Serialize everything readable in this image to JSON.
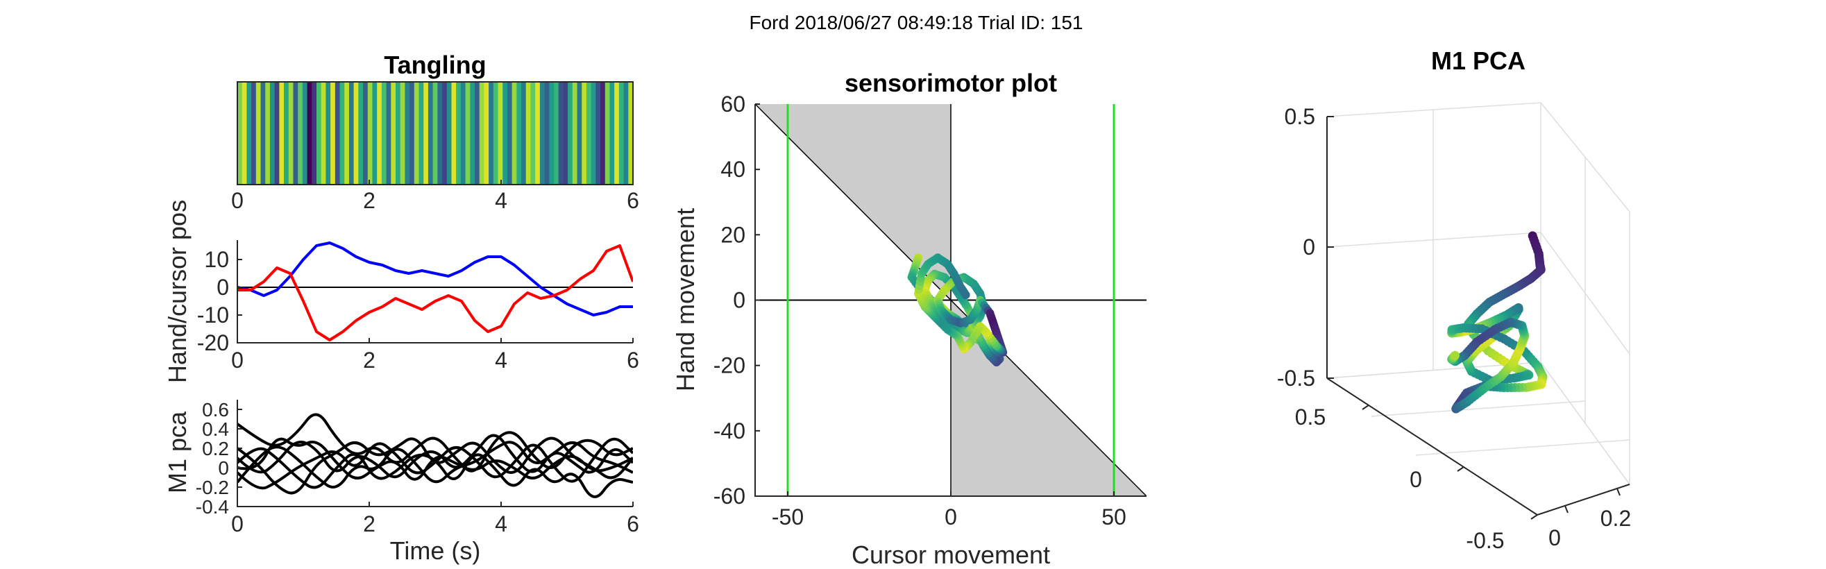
{
  "figure": {
    "suptitle": "Ford 2018/06/27 08:49:18 Trial ID: 151"
  },
  "chart_data": [
    {
      "id": "tangling",
      "type": "heatmap",
      "title": "Tangling",
      "xlim": [
        0,
        6
      ],
      "xticks": [
        "0",
        "2",
        "4",
        "6"
      ],
      "colormap": "viridis",
      "values": [
        0.8,
        0.95,
        0.55,
        0.25,
        0.9,
        0.35,
        0.85,
        0.5,
        0.2,
        0.95,
        0.6,
        0.85,
        0.3,
        0.75,
        0.5,
        0.0,
        0.15,
        0.7,
        0.9,
        0.5,
        0.95,
        0.25,
        0.65,
        0.9,
        0.4,
        0.95,
        0.6,
        0.3,
        0.85,
        0.55,
        0.95,
        0.7,
        0.35,
        0.9,
        0.6,
        0.85,
        0.45,
        0.3,
        0.85,
        0.6,
        0.95,
        0.4,
        0.75,
        0.35,
        0.2,
        0.5,
        0.95,
        0.65,
        0.45,
        0.8,
        0.55,
        0.3,
        0.85,
        0.95,
        0.4,
        0.7,
        0.9,
        0.55,
        0.35,
        0.85,
        0.6,
        0.4,
        0.9,
        0.75,
        0.95,
        0.45,
        0.3,
        0.55,
        0.65,
        0.25,
        0.2,
        0.6,
        0.85,
        0.4,
        0.9,
        0.7,
        0.55,
        0.25,
        0.1,
        0.8,
        0.55,
        0.95,
        0.65,
        0.45,
        0.9
      ]
    },
    {
      "id": "hand-cursor",
      "type": "line",
      "ylabel": "Hand/cursor pos",
      "xlim": [
        0,
        6
      ],
      "ylim": [
        -20,
        17
      ],
      "xticks": [
        "0",
        "2",
        "4",
        "6"
      ],
      "yticks": [
        10,
        0,
        -10,
        -20
      ],
      "ytick_labels": [
        "10",
        "0",
        "-10",
        "-20"
      ],
      "zero_line": true,
      "x": [
        0,
        0.2,
        0.4,
        0.6,
        0.8,
        1.0,
        1.2,
        1.4,
        1.6,
        1.8,
        2.0,
        2.2,
        2.4,
        2.6,
        2.8,
        3.0,
        3.2,
        3.4,
        3.6,
        3.8,
        4.0,
        4.2,
        4.4,
        4.6,
        4.8,
        5.0,
        5.2,
        5.4,
        5.6,
        5.8,
        6.0
      ],
      "series": [
        {
          "color": "#0000ff",
          "values": [
            0,
            -1,
            -3,
            -1,
            4,
            10,
            15,
            16,
            14,
            11,
            9,
            8,
            6,
            5,
            6,
            5,
            4,
            6,
            9,
            11,
            11,
            8,
            4,
            0,
            -3,
            -6,
            -8,
            -10,
            -9,
            -7,
            -7
          ]
        },
        {
          "color": "#ff0000",
          "values": [
            -1,
            -1,
            2,
            7,
            5,
            -5,
            -16,
            -19,
            -16,
            -12,
            -9,
            -7,
            -4,
            -6,
            -8,
            -5,
            -3,
            -5,
            -12,
            -16,
            -14,
            -6,
            -2,
            -4,
            -3,
            -1,
            3,
            6,
            13,
            15,
            2
          ]
        }
      ]
    },
    {
      "id": "m1-pca-traces",
      "type": "line",
      "ylabel": "M1 pca",
      "xlabel": "Time (s)",
      "xlim": [
        0,
        6
      ],
      "ylim": [
        -0.4,
        0.7
      ],
      "xticks": [
        "0",
        "2",
        "4",
        "6"
      ],
      "yticks": [
        0.6,
        0.4,
        0.2,
        0,
        -0.2,
        -0.4
      ],
      "ytick_labels": [
        "0.6",
        "0.4",
        "0.2",
        "0",
        "-0.2",
        "-0.4"
      ],
      "x": [
        0,
        0.3,
        0.6,
        0.9,
        1.2,
        1.5,
        1.8,
        2.1,
        2.4,
        2.7,
        3.0,
        3.3,
        3.6,
        3.9,
        4.2,
        4.5,
        4.8,
        5.1,
        5.4,
        5.7,
        6.0
      ],
      "series": [
        {
          "color": "#000000",
          "values": [
            0.45,
            0.3,
            0.2,
            0.35,
            0.62,
            0.3,
            0.1,
            0.25,
            0.0,
            0.2,
            0.35,
            0.1,
            -0.1,
            0.3,
            0.4,
            0.1,
            -0.05,
            0.25,
            0.3,
            0.1,
            0.2
          ]
        },
        {
          "color": "#000000",
          "values": [
            0.1,
            -0.1,
            0.05,
            0.3,
            0.2,
            -0.1,
            0.15,
            0.05,
            -0.15,
            0.1,
            0.2,
            -0.05,
            0.15,
            0.4,
            0.1,
            -0.1,
            0.2,
            0.05,
            -0.1,
            0.25,
            0.05
          ]
        },
        {
          "color": "#000000",
          "values": [
            -0.05,
            -0.25,
            -0.15,
            0.0,
            0.1,
            0.2,
            -0.05,
            0.3,
            0.15,
            -0.1,
            0.05,
            0.25,
            0.1,
            -0.15,
            0.05,
            0.3,
            0.0,
            -0.2,
            0.1,
            0.35,
            0.15
          ]
        },
        {
          "color": "#000000",
          "values": [
            0.2,
            0.05,
            -0.2,
            -0.3,
            0.05,
            0.15,
            0.3,
            0.1,
            0.2,
            0.35,
            0.0,
            0.15,
            0.3,
            0.05,
            -0.1,
            0.2,
            0.35,
            0.1,
            0.0,
            -0.15,
            0.1
          ]
        },
        {
          "color": "#000000",
          "values": [
            -0.15,
            0.1,
            0.25,
            0.1,
            -0.1,
            -0.25,
            0.05,
            -0.05,
            0.25,
            0.05,
            -0.2,
            0.0,
            0.05,
            0.2,
            0.3,
            0.0,
            0.15,
            0.3,
            0.1,
            0.05,
            -0.05
          ]
        },
        {
          "color": "#000000",
          "values": [
            0.05,
            0.25,
            0.1,
            -0.1,
            -0.25,
            0.0,
            0.2,
            -0.15,
            -0.05,
            0.15,
            0.1,
            -0.2,
            0.2,
            0.0,
            -0.25,
            0.05,
            -0.2,
            0.0,
            -0.38,
            -0.1,
            -0.15
          ]
        },
        {
          "color": "#000000",
          "values": [
            0.0,
            -0.05,
            0.35,
            0.2,
            0.3,
            0.05,
            -0.15,
            0.0,
            0.1,
            -0.2,
            0.15,
            0.05,
            -0.05,
            0.1,
            0.0,
            -0.15,
            0.05,
            0.15,
            -0.05,
            0.0,
            0.1
          ]
        }
      ]
    },
    {
      "id": "sensorimotor",
      "type": "scatter",
      "title": "sensorimotor plot",
      "xlabel": "Cursor movement",
      "ylabel": "Hand movement",
      "xlim": [
        -60,
        60
      ],
      "ylim": [
        -60,
        60
      ],
      "xticks": [
        -50,
        0,
        50
      ],
      "xtick_labels": [
        "-50",
        "0",
        "50"
      ],
      "yticks": [
        60,
        40,
        20,
        0,
        -20,
        -40,
        -60
      ],
      "ytick_labels": [
        "60",
        "40",
        "20",
        "0",
        "-20",
        "-40",
        "-60"
      ],
      "shaded_regions": "x<0,y>-x ; x>0,y<-x",
      "vlines_green": [
        -50,
        50
      ],
      "colormap": "viridis",
      "points": [
        [
          -10,
          13,
          0.9
        ],
        [
          -11,
          10,
          0.8
        ],
        [
          -12,
          7,
          0.6
        ],
        [
          -9,
          3,
          0.5
        ],
        [
          -6,
          0,
          0.7
        ],
        [
          -3,
          -2,
          0.9
        ],
        [
          -1,
          -4,
          0.85
        ],
        [
          2,
          -6,
          0.6
        ],
        [
          4,
          -8,
          0.4
        ],
        [
          6,
          -10,
          0.5
        ],
        [
          8,
          -12,
          0.7
        ],
        [
          10,
          -13,
          0.9
        ],
        [
          12,
          -14,
          0.8
        ],
        [
          14,
          -16,
          0.5
        ],
        [
          15,
          -18,
          0.3
        ],
        [
          14,
          -19,
          0.2
        ],
        [
          12,
          -17,
          0.35
        ],
        [
          10,
          -14,
          0.6
        ],
        [
          8,
          -10,
          0.8
        ],
        [
          7,
          -6,
          0.9
        ],
        [
          5,
          -2,
          0.7
        ],
        [
          3,
          1,
          0.55
        ],
        [
          1,
          4,
          0.5
        ],
        [
          -2,
          7,
          0.6
        ],
        [
          -5,
          8,
          0.7
        ],
        [
          -7,
          6,
          0.85
        ],
        [
          -8,
          3,
          0.95
        ],
        [
          -6,
          -1,
          0.8
        ],
        [
          -3,
          -4,
          0.6
        ],
        [
          0,
          -7,
          0.5
        ],
        [
          3,
          -9,
          0.55
        ],
        [
          5,
          -10,
          0.7
        ],
        [
          7,
          -8,
          0.85
        ],
        [
          9,
          -5,
          0.6
        ],
        [
          10,
          -2,
          0.45
        ],
        [
          9,
          2,
          0.5
        ],
        [
          7,
          5,
          0.55
        ],
        [
          4,
          7,
          0.6
        ],
        [
          1,
          6,
          0.75
        ],
        [
          -2,
          3,
          0.9
        ],
        [
          -4,
          0,
          0.85
        ],
        [
          -3,
          -3,
          0.65
        ],
        [
          0,
          -6,
          0.4
        ],
        [
          3,
          -7,
          0.3
        ],
        [
          6,
          -6,
          0.45
        ],
        [
          8,
          -3,
          0.6
        ],
        [
          9,
          0,
          0.75
        ],
        [
          12,
          -4,
          0.1
        ],
        [
          13,
          -7,
          0.05
        ],
        [
          14,
          -10,
          0.1
        ],
        [
          15,
          -13,
          0.15
        ],
        [
          16,
          -16,
          0.2
        ],
        [
          14,
          -14,
          0.7
        ],
        [
          11,
          -10,
          0.95
        ],
        [
          9,
          -8,
          0.9
        ],
        [
          6,
          -13,
          0.8
        ],
        [
          4,
          -15,
          0.95
        ],
        [
          2,
          -11,
          0.75
        ],
        [
          -1,
          -9,
          0.55
        ],
        [
          -4,
          -6,
          0.5
        ],
        [
          -6,
          -4,
          0.65
        ],
        [
          -8,
          -2,
          0.8
        ],
        [
          -10,
          2,
          0.9
        ],
        [
          -9,
          8,
          0.7
        ],
        [
          -7,
          11,
          0.6
        ],
        [
          -4,
          13,
          0.55
        ],
        [
          -1,
          11,
          0.5
        ],
        [
          1,
          8,
          0.45
        ],
        [
          3,
          4,
          0.4
        ],
        [
          5,
          1,
          0.35
        ]
      ]
    },
    {
      "id": "m1-pca-3d",
      "type": "scatter",
      "title": "M1 PCA",
      "ztick_labels": [
        "0.5",
        "0",
        "-0.5"
      ],
      "ytick_labels": [
        "0.5",
        "0",
        "-0.5"
      ],
      "xtick_labels": [
        "0",
        "0.2"
      ],
      "colormap": "viridis",
      "points": [
        [
          0.1,
          0.5,
          0.52,
          0.05
        ],
        [
          0.11,
          0.52,
          0.46,
          0.08
        ],
        [
          0.12,
          0.5,
          0.4,
          0.1
        ],
        [
          0.14,
          0.45,
          0.34,
          0.12
        ],
        [
          0.13,
          0.4,
          0.28,
          0.15
        ],
        [
          0.12,
          0.34,
          0.22,
          0.2
        ],
        [
          0.1,
          0.28,
          0.16,
          0.28
        ],
        [
          0.08,
          0.22,
          0.1,
          0.35
        ],
        [
          0.06,
          0.18,
          0.04,
          0.45
        ],
        [
          0.05,
          0.14,
          -0.02,
          0.6
        ],
        [
          0.07,
          0.12,
          -0.08,
          0.7
        ],
        [
          0.1,
          0.15,
          -0.14,
          0.85
        ],
        [
          0.14,
          0.2,
          -0.18,
          0.95
        ],
        [
          0.18,
          0.22,
          -0.22,
          0.8
        ],
        [
          0.2,
          0.18,
          -0.26,
          0.6
        ],
        [
          0.18,
          0.12,
          -0.3,
          0.5
        ],
        [
          0.14,
          0.06,
          -0.33,
          0.45
        ],
        [
          0.1,
          0.02,
          -0.3,
          0.55
        ],
        [
          0.08,
          0.04,
          -0.24,
          0.7
        ],
        [
          0.09,
          0.08,
          -0.18,
          0.9
        ],
        [
          0.12,
          0.12,
          -0.12,
          0.95
        ],
        [
          0.16,
          0.14,
          -0.08,
          0.75
        ],
        [
          0.2,
          0.1,
          -0.06,
          0.5
        ],
        [
          0.22,
          0.04,
          -0.1,
          0.4
        ],
        [
          0.21,
          -0.02,
          -0.16,
          0.5
        ],
        [
          0.18,
          -0.06,
          -0.2,
          0.7
        ],
        [
          0.14,
          -0.08,
          -0.22,
          0.9
        ],
        [
          0.1,
          -0.06,
          -0.2,
          0.95
        ],
        [
          0.06,
          -0.02,
          -0.16,
          0.8
        ],
        [
          0.04,
          0.04,
          -0.1,
          0.65
        ],
        [
          0.05,
          0.1,
          -0.06,
          0.55
        ],
        [
          0.08,
          0.16,
          -0.04,
          0.45
        ],
        [
          0.12,
          0.22,
          -0.06,
          0.4
        ],
        [
          0.16,
          0.26,
          -0.1,
          0.5
        ],
        [
          0.19,
          0.28,
          -0.16,
          0.65
        ],
        [
          0.21,
          0.26,
          -0.22,
          0.8
        ],
        [
          0.22,
          0.22,
          -0.28,
          0.95
        ],
        [
          0.2,
          0.16,
          -0.32,
          0.85
        ],
        [
          0.16,
          0.1,
          -0.34,
          0.6
        ],
        [
          0.12,
          0.06,
          -0.34,
          0.4
        ],
        [
          0.08,
          0.04,
          -0.36,
          0.25
        ],
        [
          0.05,
          0.06,
          -0.38,
          0.2
        ],
        [
          0.03,
          0.1,
          -0.36,
          0.3
        ],
        [
          0.04,
          0.16,
          -0.3,
          0.45
        ],
        [
          0.07,
          0.2,
          -0.24,
          0.6
        ],
        [
          0.11,
          0.22,
          -0.2,
          0.75
        ],
        [
          0.15,
          0.2,
          -0.18,
          0.9
        ],
        [
          0.19,
          0.14,
          -0.18,
          0.95
        ],
        [
          0.23,
          0.06,
          -0.2,
          0.8
        ],
        [
          0.25,
          -0.02,
          -0.22,
          0.55
        ],
        [
          0.24,
          -0.08,
          -0.24,
          0.35
        ],
        [
          0.21,
          -0.12,
          -0.28,
          0.25
        ],
        [
          0.17,
          -0.14,
          -0.32,
          0.2
        ],
        [
          0.13,
          -0.12,
          -0.34,
          0.3
        ],
        [
          0.09,
          -0.08,
          -0.32,
          0.5
        ],
        [
          0.06,
          -0.02,
          -0.26,
          0.7
        ],
        [
          0.05,
          0.04,
          -0.2,
          0.9
        ]
      ]
    }
  ]
}
